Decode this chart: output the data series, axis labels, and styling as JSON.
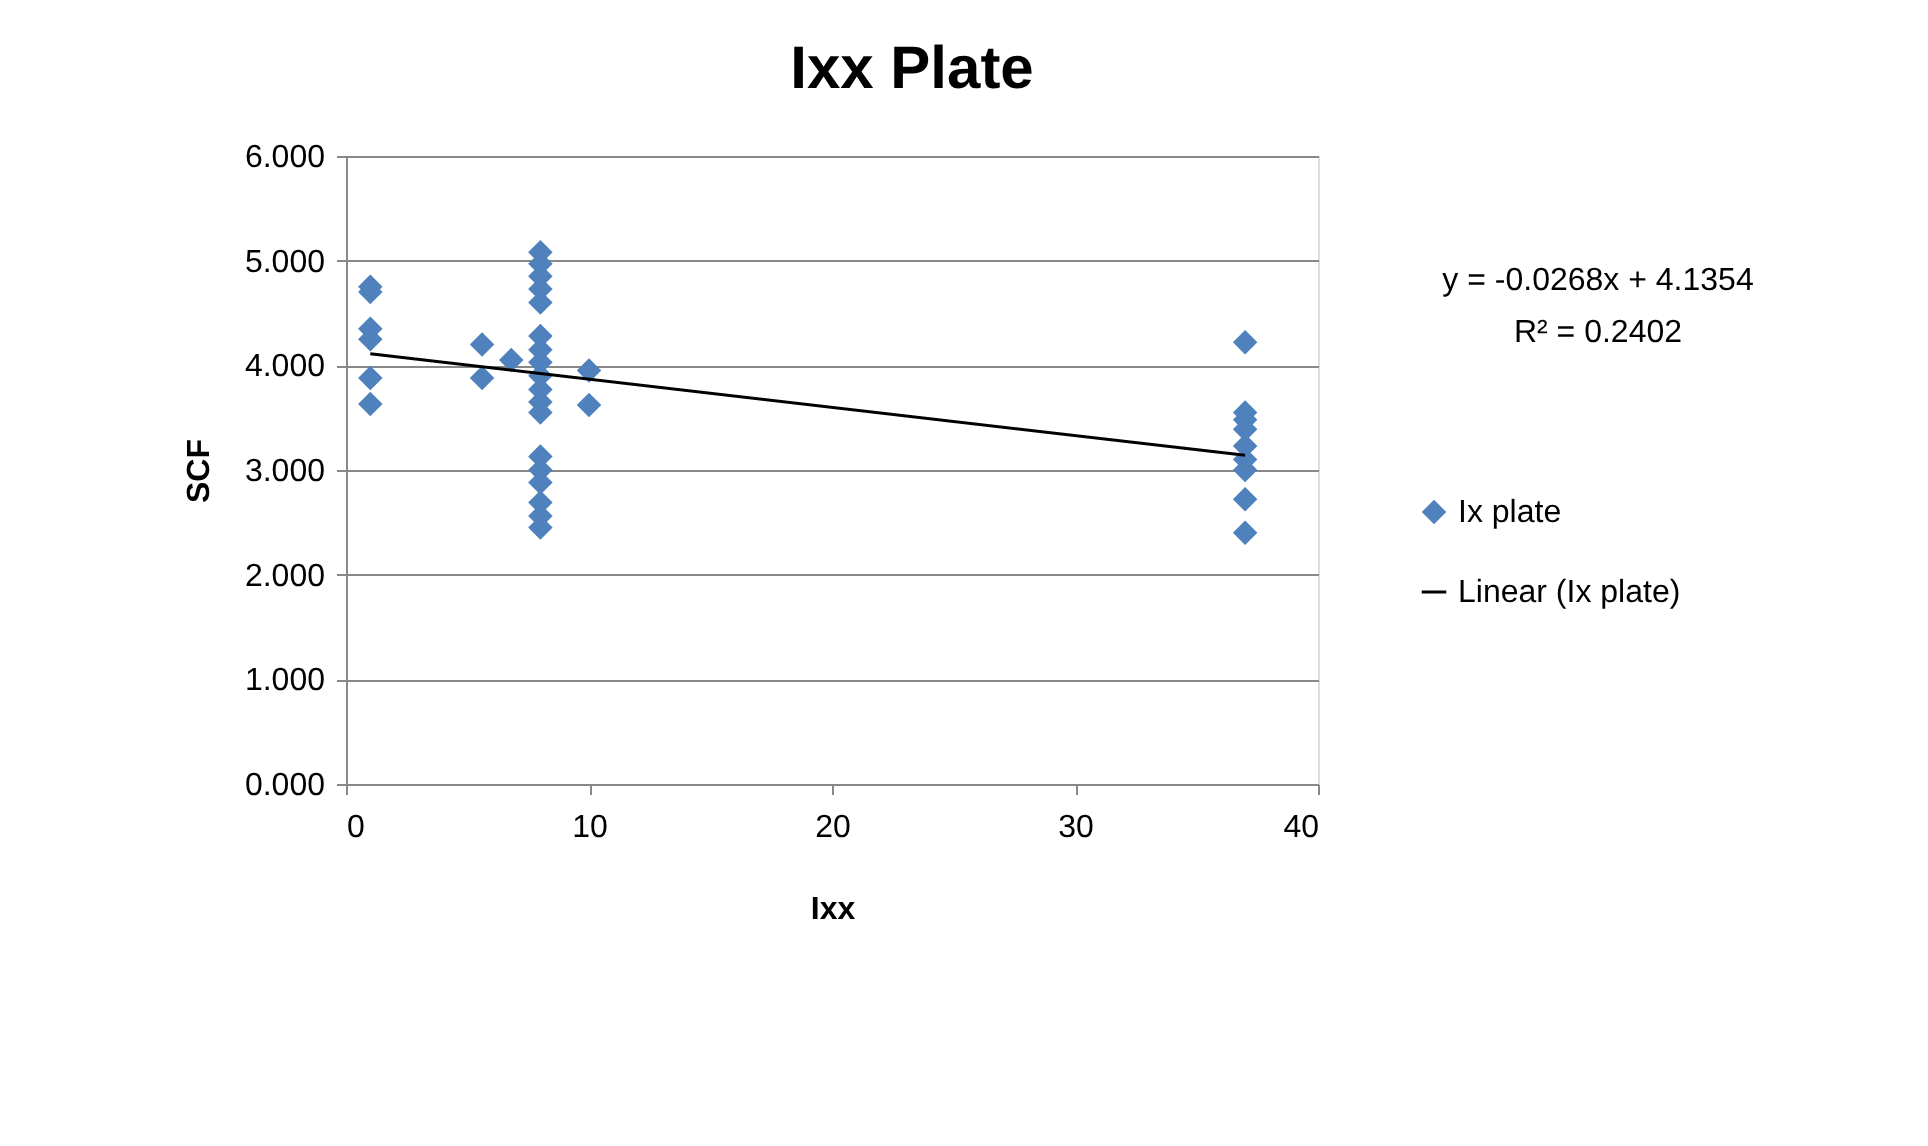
{
  "chart_data": {
    "type": "scatter",
    "title": "Ixx Plate",
    "xlabel": "Ixx",
    "ylabel": "SCF",
    "xlim": [
      0,
      40
    ],
    "xticks": [
      0,
      10,
      20,
      30,
      40
    ],
    "ylim": [
      0,
      6
    ],
    "yticks": [
      {
        "value": 0,
        "label": "0.000"
      },
      {
        "value": 1,
        "label": "1.000"
      },
      {
        "value": 2,
        "label": "2.000"
      },
      {
        "value": 3,
        "label": "3.000"
      },
      {
        "value": 4,
        "label": "4.000"
      },
      {
        "value": 5,
        "label": "5.000"
      },
      {
        "value": 6,
        "label": "6.000"
      }
    ],
    "grid": "y",
    "legend": "right",
    "annotations": [
      "y = -0.0268x + 4.1354",
      "R² = 0.2402"
    ],
    "series": [
      {
        "name": "Ix plate",
        "marker": "diamond",
        "color": "#4f81bd",
        "x": [
          1,
          1,
          1,
          1,
          1,
          1,
          5.6,
          5.6,
          6.8,
          8,
          8,
          8,
          8,
          8,
          8,
          8,
          8,
          8,
          8,
          8,
          8,
          8,
          8,
          8,
          8,
          8,
          8,
          10,
          10,
          37,
          37,
          37,
          37,
          37,
          37,
          37,
          37,
          37
        ],
        "values": [
          4.75,
          4.7,
          4.35,
          4.25,
          3.88,
          3.63,
          4.2,
          3.88,
          4.05,
          5.08,
          4.97,
          4.85,
          4.73,
          4.6,
          4.28,
          4.15,
          4.03,
          3.9,
          3.77,
          3.65,
          3.55,
          3.13,
          3.0,
          2.88,
          2.69,
          2.56,
          2.45,
          3.95,
          3.62,
          4.22,
          3.55,
          3.48,
          3.39,
          3.23,
          3.1,
          3.0,
          2.72,
          2.4
        ]
      },
      {
        "name": "Linear (Ix plate)",
        "type": "line",
        "marker": "none",
        "line_style": "solid",
        "color": "#000000",
        "x": [
          1,
          37
        ],
        "values": [
          4.11,
          3.14
        ]
      }
    ]
  }
}
